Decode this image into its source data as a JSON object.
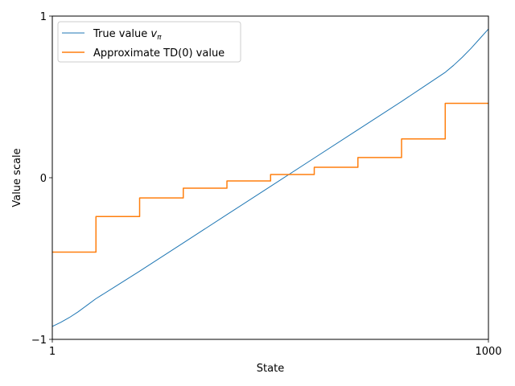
{
  "chart_data": {
    "type": "line",
    "title": "",
    "xlabel": "State",
    "ylabel": "Value scale",
    "xlim": [
      1,
      1000
    ],
    "ylim": [
      -1,
      1
    ],
    "xticks": [
      {
        "value": 1,
        "label": "1"
      },
      {
        "value": 1000,
        "label": "1000"
      }
    ],
    "yticks": [
      {
        "value": -1,
        "label": "−1"
      },
      {
        "value": 0,
        "label": "0"
      },
      {
        "value": 1,
        "label": "1"
      }
    ],
    "grid": false,
    "legend_position": "top-left",
    "series": [
      {
        "name": "True value vπ",
        "name_main": "True value ",
        "name_italic": "v",
        "name_sub": "π",
        "color": "#1f77b4",
        "line_width": 1,
        "x": [
          1,
          20,
          40,
          60,
          80,
          100,
          150,
          200,
          300,
          400,
          500,
          600,
          700,
          800,
          850,
          900,
          920,
          940,
          960,
          980,
          1000
        ],
        "y": [
          -0.92,
          -0.895,
          -0.865,
          -0.83,
          -0.79,
          -0.75,
          -0.665,
          -0.58,
          -0.405,
          -0.23,
          -0.055,
          0.12,
          0.295,
          0.47,
          0.56,
          0.65,
          0.695,
          0.745,
          0.8,
          0.86,
          0.92
        ]
      },
      {
        "name": "Approximate TD(0) value",
        "color": "#ff7f0e",
        "line_width": 1.5,
        "step": true,
        "x": [
          1,
          101,
          101,
          201,
          201,
          301,
          301,
          401,
          401,
          501,
          501,
          601,
          601,
          701,
          701,
          801,
          801,
          901,
          901,
          1000
        ],
        "y": [
          -0.46,
          -0.46,
          -0.24,
          -0.24,
          -0.125,
          -0.125,
          -0.065,
          -0.065,
          -0.02,
          -0.02,
          0.02,
          0.02,
          0.065,
          0.065,
          0.125,
          0.125,
          0.24,
          0.24,
          0.46,
          0.46
        ]
      }
    ]
  }
}
